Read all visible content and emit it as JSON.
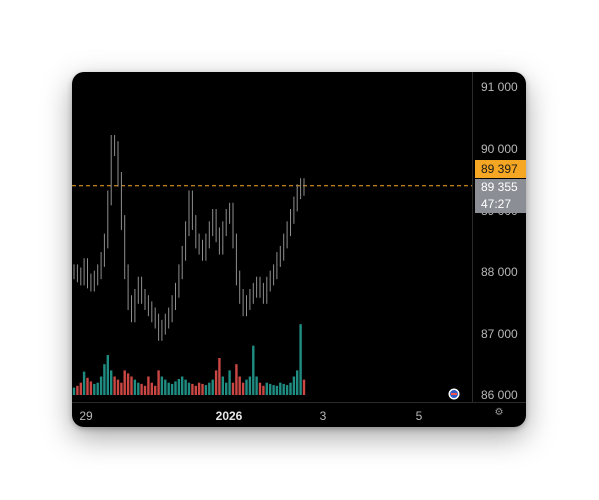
{
  "price_axis": {
    "ticks": [
      "91 000",
      "90 000",
      "89 000",
      "88 000",
      "87 000",
      "86 000"
    ]
  },
  "time_axis": {
    "ticks": [
      {
        "label": "29",
        "bold": false
      },
      {
        "label": "2026",
        "bold": true
      },
      {
        "label": "3",
        "bold": false
      },
      {
        "label": "5",
        "bold": false
      }
    ]
  },
  "price_tag": "89 397",
  "last_price": {
    "value": "89 355",
    "countdown": "47:27"
  },
  "icons": {
    "settings": "settings-icon",
    "logo": "logo-badge-icon"
  },
  "colors": {
    "background": "#000000",
    "candle": "#8f8f8f",
    "price_tag": "#f5a623",
    "last_tag": "#8b8e94",
    "volume_up": "#26a69a",
    "volume_down": "#ef5350",
    "guide_line": "#f5a623"
  },
  "chart_data": {
    "type": "line",
    "ylim": [
      86000,
      91000
    ],
    "series": [
      {
        "values": [
          88000,
          87950,
          87900,
          88100,
          87850,
          87800,
          87900,
          88000,
          88200,
          88500,
          89200,
          90100,
          90000,
          89500,
          88800,
          88000,
          87500,
          87300,
          87600,
          87800,
          87600,
          87500,
          87400,
          87300,
          87200,
          87000,
          87100,
          87200,
          87300,
          87500,
          87700,
          88000,
          88300,
          88700,
          89200,
          88800,
          88500,
          88400,
          88300,
          88500,
          88700,
          88900,
          88600,
          88400,
          88700,
          88900,
          89000,
          88500,
          87900,
          87600,
          87400,
          87500,
          87600,
          87700,
          87800,
          87700,
          87600,
          87800,
          87900,
          88000,
          88200,
          88300,
          88500,
          88700,
          88900,
          89100,
          89300,
          89400,
          89355
        ]
      },
      {
        "values": [
          86120,
          86150,
          86200,
          86380,
          86280,
          86220,
          86180,
          86200,
          86300,
          86500,
          86650,
          86400,
          86300,
          86250,
          86200,
          86400,
          86350,
          86300,
          86250,
          86200,
          86180,
          86150,
          86300,
          86200,
          86150,
          86400,
          86300,
          86250,
          86200,
          86180,
          86220,
          86260,
          86300,
          86250,
          86200,
          86180,
          86150,
          86200,
          86180,
          86160,
          86200,
          86250,
          86400,
          86600,
          86300,
          86200,
          86400,
          86200,
          86500,
          86300,
          86200,
          86250,
          86300,
          86800,
          86300,
          86200,
          86150,
          86200,
          86180,
          86160,
          86150,
          86200,
          86180,
          86160,
          86200,
          86300,
          86400,
          87150,
          86250
        ]
      }
    ]
  }
}
